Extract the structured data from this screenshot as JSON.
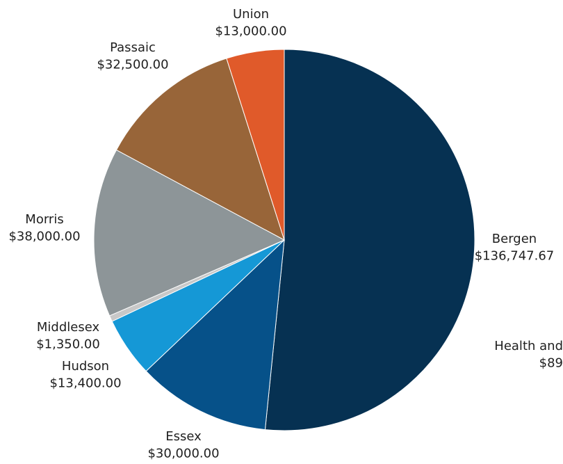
{
  "chart_data": {
    "type": "pie",
    "title": "",
    "legend": "none",
    "slices": [
      {
        "label": "Bergen",
        "value": 136747.67,
        "display": "$136,747.67",
        "color": "#063152"
      },
      {
        "label": "Essex",
        "value": 30000.0,
        "display": "$30,000.00",
        "color": "#065189"
      },
      {
        "label": "Hudson",
        "value": 13400.0,
        "display": "$13,400.00",
        "color": "#1598d6"
      },
      {
        "label": "Middlesex",
        "value": 1350.0,
        "display": "$1,350.00",
        "color": "#c8c8c8"
      },
      {
        "label": "Morris",
        "value": 38000.0,
        "display": "$38,000.00",
        "color": "#8d9598"
      },
      {
        "label": "Passaic",
        "value": 32500.0,
        "display": "$32,500.00",
        "color": "#986539"
      },
      {
        "label": "Union",
        "value": 13000.0,
        "display": "$13,000.00",
        "color": "#e05a2a"
      }
    ],
    "extra_labels": [
      {
        "label": "Health and",
        "display": "$89"
      }
    ]
  }
}
